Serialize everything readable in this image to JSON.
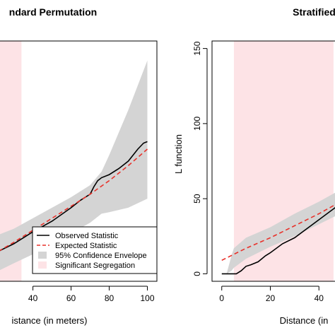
{
  "chart_data": [
    {
      "type": "line",
      "title": "ndard Permutation",
      "xlabel": "istance (in meters)",
      "ylabel": "",
      "xlim": [
        22,
        105
      ],
      "ylim": [
        -5,
        155
      ],
      "xticks": [
        "40",
        "60",
        "80",
        "100"
      ],
      "yticks": [],
      "grid": false,
      "significant_segregation": {
        "x_start": 0,
        "x_end": 34,
        "color": "#fde3e6"
      },
      "envelope": {
        "x": [
          22,
          30,
          40,
          50,
          60,
          70,
          76,
          80,
          90,
          100
        ],
        "lower": [
          2,
          7,
          13,
          20,
          27,
          34,
          40,
          41,
          44,
          50
        ],
        "upper": [
          26,
          30,
          37,
          44,
          51,
          59,
          68,
          79,
          109,
          142
        ]
      },
      "series": [
        {
          "name": "Observed Statistic",
          "color": "#000000",
          "dash": "solid",
          "x": [
            22,
            30,
            40,
            50,
            60,
            65,
            70,
            72,
            74,
            76,
            80,
            85,
            90,
            95,
            98,
            100
          ],
          "y": [
            15,
            20,
            28,
            35,
            44,
            49,
            53,
            58,
            62,
            64,
            66,
            70,
            75,
            83,
            87,
            88
          ]
        },
        {
          "name": "Expected Statistic",
          "color": "#e8322b",
          "dash": "dashed",
          "x": [
            22,
            30,
            40,
            50,
            60,
            70,
            80,
            90,
            100
          ],
          "y": [
            15,
            21,
            29,
            37,
            45,
            53,
            62,
            72,
            83
          ]
        }
      ],
      "legend": {
        "placement": "bottom-right",
        "items": [
          {
            "label": "Observed Statistic",
            "kind": "line",
            "color": "#000000"
          },
          {
            "label": "Expected Statistic",
            "kind": "dashed",
            "color": "#e8322b"
          },
          {
            "label": "95% Confidence Envelope",
            "kind": "box",
            "color": "#d4d4d4"
          },
          {
            "label": "Significant Segregation",
            "kind": "box",
            "color": "#fde3e6"
          }
        ]
      }
    },
    {
      "type": "line",
      "title": "Stratified Pe",
      "xlabel": "Distance (in",
      "ylabel": "L function",
      "xlim": [
        -4,
        60
      ],
      "ylim": [
        -5,
        155
      ],
      "xticks": [
        "0",
        "20",
        "40"
      ],
      "yticks": [
        "0",
        "50",
        "100",
        "150"
      ],
      "grid": false,
      "significant_segregation": {
        "x_start": 5,
        "x_end": 46,
        "color": "#fde3e6"
      },
      "envelope": {
        "x": [
          0,
          2,
          4,
          5,
          10,
          20,
          30,
          40,
          50,
          60
        ],
        "lower": [
          0,
          0,
          2,
          4,
          10,
          18,
          25,
          33,
          41,
          50
        ],
        "upper": [
          0,
          0,
          12,
          17,
          24,
          31,
          40,
          48,
          57,
          66
        ]
      },
      "series": [
        {
          "name": "Observed Statistic",
          "color": "#000000",
          "dash": "solid",
          "x": [
            0,
            3,
            5,
            6,
            8,
            10,
            12,
            15,
            18,
            20,
            25,
            30,
            35,
            40,
            45,
            50,
            55,
            60
          ],
          "y": [
            0,
            0,
            0,
            0,
            2,
            5,
            6,
            8,
            12,
            14,
            20,
            24,
            30,
            36,
            42,
            48,
            53,
            58
          ]
        },
        {
          "name": "Expected Statistic",
          "color": "#e8322b",
          "dash": "dashed",
          "x": [
            0,
            5,
            10,
            20,
            30,
            40,
            50,
            60
          ],
          "y": [
            9,
            13,
            17,
            24,
            32,
            40,
            49,
            58
          ]
        }
      ]
    }
  ]
}
